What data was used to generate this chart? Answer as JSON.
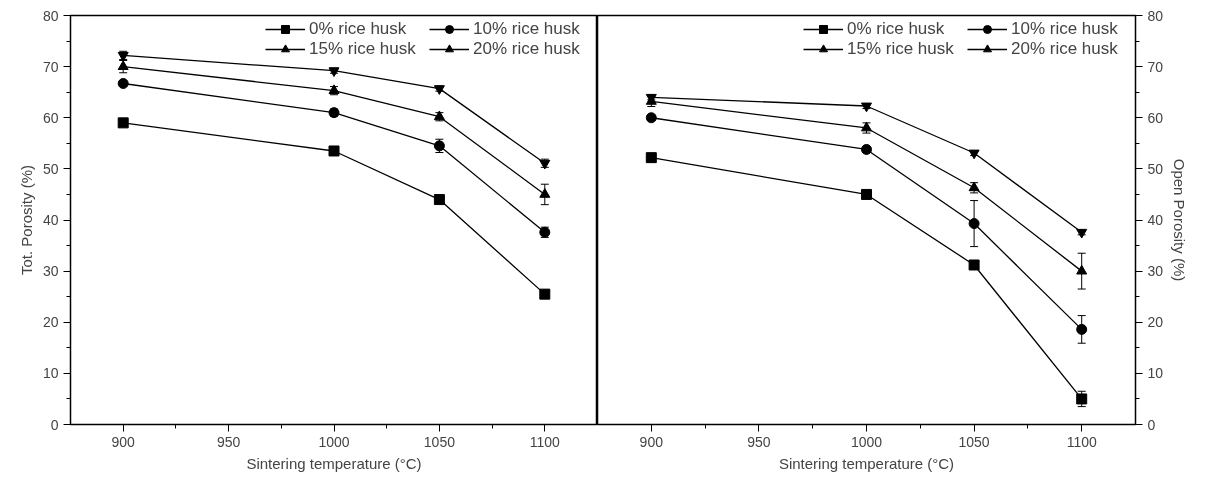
{
  "chart_data": [
    {
      "type": "line",
      "xlabel": "Sintering temperature (°C)",
      "ylabel": "Tot. Porosity (%)",
      "x": [
        900,
        1000,
        1050,
        1100
      ],
      "xlim": [
        875,
        1125
      ],
      "xticks": [
        900,
        {
          "value": 925,
          "label": null
        },
        950,
        {
          "value": 975,
          "label": null
        },
        1000,
        {
          "value": 1025,
          "label": null
        },
        1050,
        {
          "value": 1075,
          "label": null
        },
        1100
      ],
      "ylim": [
        0,
        80
      ],
      "yticks": [
        0,
        {
          "value": 5,
          "label": null
        },
        10,
        {
          "value": 15,
          "label": null
        },
        20,
        {
          "value": 25,
          "label": null
        },
        30,
        {
          "value": 35,
          "label": null
        },
        40,
        {
          "value": 45,
          "label": null
        },
        50,
        {
          "value": 55,
          "label": null
        },
        60,
        {
          "value": 65,
          "label": null
        },
        70,
        {
          "value": 75,
          "label": null
        },
        80
      ],
      "legend": "top right",
      "line_style": "solid",
      "series": [
        {
          "name": "0% rice husk",
          "color": "#000000",
          "marker": "square",
          "values": [
            59,
            53.5,
            44,
            25.5
          ],
          "errors": [
            0.8,
            0.5,
            0.5,
            0.8
          ]
        },
        {
          "name": "10% rice husk",
          "color": "#000000",
          "marker": "circle",
          "values": [
            66.7,
            61,
            54.5,
            37.6
          ],
          "errors": [
            0.5,
            0.7,
            1.3,
            1
          ]
        },
        {
          "name": "15% rice husk",
          "color": "#000000",
          "marker": "triangle",
          "values": [
            70,
            65.3,
            60.2,
            45
          ],
          "errors": [
            1.2,
            0.8,
            0.8,
            2
          ]
        },
        {
          "name": "20% rice husk",
          "color": "#000000",
          "marker": "triangle",
          "values": [
            72.2,
            69.2,
            65.7,
            51.1
          ],
          "errors": [
            0.8,
            0.5,
            0.5,
            0.8
          ]
        }
      ]
    },
    {
      "type": "line",
      "xlabel": "Sintering temperature (°C)",
      "ylabel": "Open Porosity (%)",
      "x": [
        900,
        1000,
        1050,
        1100
      ],
      "xlim": [
        875,
        1125
      ],
      "xticks": [
        900,
        {
          "value": 925,
          "label": null
        },
        950,
        {
          "value": 975,
          "label": null
        },
        1000,
        {
          "value": 1025,
          "label": null
        },
        1050,
        {
          "value": 1075,
          "label": null
        },
        1100
      ],
      "ylim": [
        0,
        80
      ],
      "yticks": [
        0,
        {
          "value": 5,
          "label": null
        },
        10,
        {
          "value": 15,
          "label": null
        },
        20,
        {
          "value": 25,
          "label": null
        },
        30,
        {
          "value": 35,
          "label": null
        },
        40,
        {
          "value": 45,
          "label": null
        },
        50,
        {
          "value": 55,
          "label": null
        },
        60,
        {
          "value": 65,
          "label": null
        },
        70,
        {
          "value": 75,
          "label": null
        },
        80
      ],
      "legend": "top right",
      "line_style": "solid",
      "series": [
        {
          "name": "0% rice husk",
          "color": "#000000",
          "marker": "square",
          "values": [
            52.2,
            45,
            31.2,
            5
          ],
          "errors": [
            0.5,
            0.5,
            0.5,
            1.5
          ]
        },
        {
          "name": "10% rice husk",
          "color": "#000000",
          "marker": "circle",
          "values": [
            60,
            53.8,
            39.3,
            18.6
          ],
          "errors": [
            0.5,
            0.5,
            4.5,
            2.7
          ]
        },
        {
          "name": "15% rice husk",
          "color": "#000000",
          "marker": "triangle",
          "values": [
            63.2,
            58,
            46.3,
            30
          ],
          "errors": [
            1,
            1,
            1,
            3.5
          ]
        },
        {
          "name": "20% rice husk",
          "color": "#000000",
          "marker": "triangle",
          "values": [
            64,
            62.3,
            53.1,
            37.6
          ],
          "errors": [
            0.5,
            0.5,
            0.5,
            0.5
          ]
        }
      ]
    }
  ]
}
